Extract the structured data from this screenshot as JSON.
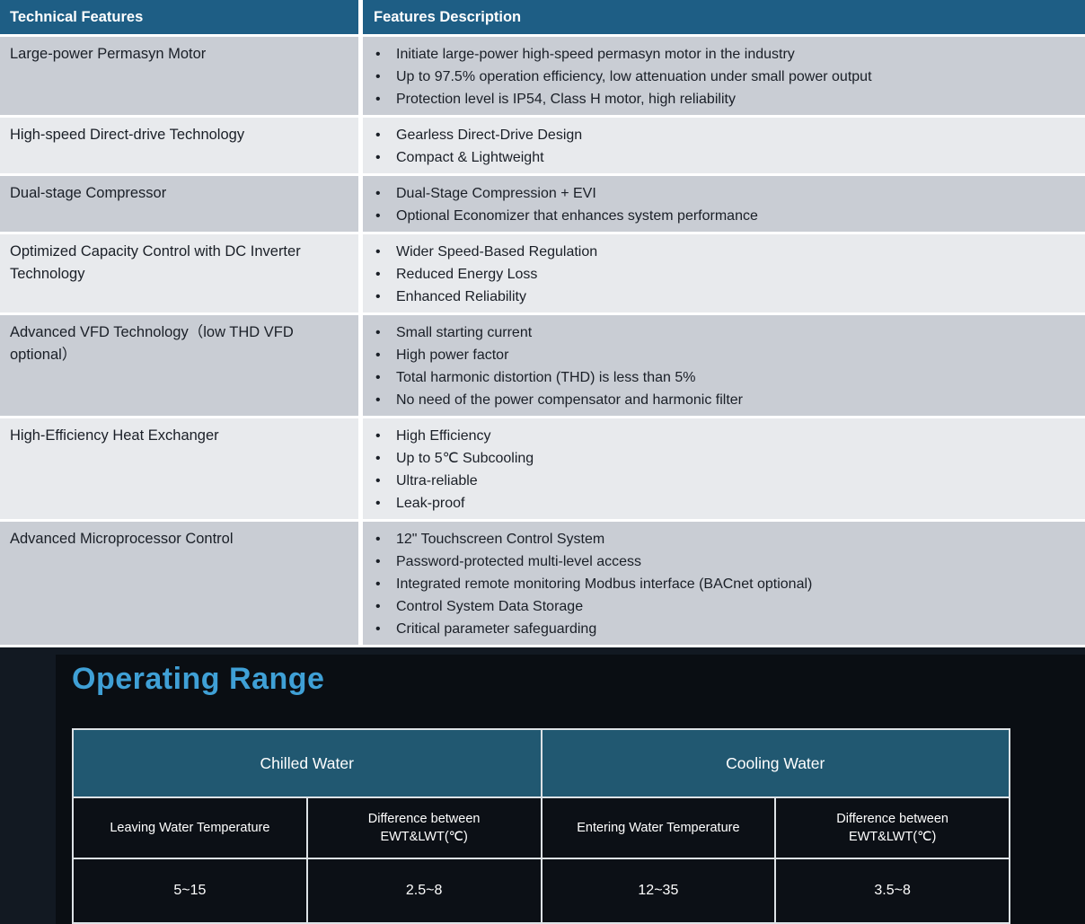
{
  "features_table": {
    "headers": [
      "Technical Features",
      "Features Description"
    ],
    "rows": [
      {
        "feature": "Large-power Permasyn Motor",
        "bullets": [
          "Initiate large-power high-speed permasyn motor in the industry",
          "Up to 97.5% operation efficiency, low attenuation under small power output",
          "Protection level is IP54, Class H motor, high reliability"
        ]
      },
      {
        "feature": "High-speed Direct-drive Technology",
        "bullets": [
          "Gearless Direct-Drive Design",
          "Compact & Lightweight"
        ]
      },
      {
        "feature": "Dual-stage Compressor",
        "bullets": [
          "Dual-Stage Compression + EVI",
          "Optional Economizer that enhances system performance"
        ]
      },
      {
        "feature": "Optimized Capacity Control with DC Inverter Technology",
        "bullets": [
          "Wider Speed-Based Regulation",
          "Reduced Energy Loss",
          "Enhanced Reliability"
        ]
      },
      {
        "feature": "Advanced VFD Technology（low THD VFD optional）",
        "bullets": [
          "Small starting current",
          "High power factor",
          "Total harmonic distortion (THD) is less than 5%",
          "No need of the power compensator and harmonic filter"
        ]
      },
      {
        "feature": "High-Efficiency Heat Exchanger",
        "bullets": [
          "High Efficiency",
          "Up to 5℃ Subcooling",
          "Ultra-reliable",
          "Leak-proof"
        ]
      },
      {
        "feature": "Advanced Microprocessor Control",
        "bullets": [
          "12\" Touchscreen Control System",
          "Password-protected multi-level access",
          "Integrated remote monitoring Modbus interface (BACnet optional)",
          "Control System Data Storage",
          "Critical parameter safeguarding"
        ]
      }
    ]
  },
  "operating_range": {
    "title": "Operating Range",
    "groups": [
      "Chilled Water",
      "Cooling Water"
    ],
    "columns": [
      "Leaving Water Temperature",
      "Difference between EWT&LWT(℃)",
      "Entering Water Temperature",
      "Difference between EWT&LWT(℃)"
    ],
    "values": [
      "5~15",
      "2.5~8",
      "12~35",
      "3.5~8"
    ]
  },
  "colors": {
    "header_teal": "#1e5e85",
    "group_teal": "#215871",
    "row_dark": "#c9cdd4",
    "row_light": "#e8eaed",
    "text_dark": "#1a1f27",
    "section_bg": "#121922",
    "panel_bg": "#0a0e13",
    "accent_blue": "#3fa0d6",
    "cell_bg": "#0c1016",
    "table_border": "#dde2e6"
  }
}
